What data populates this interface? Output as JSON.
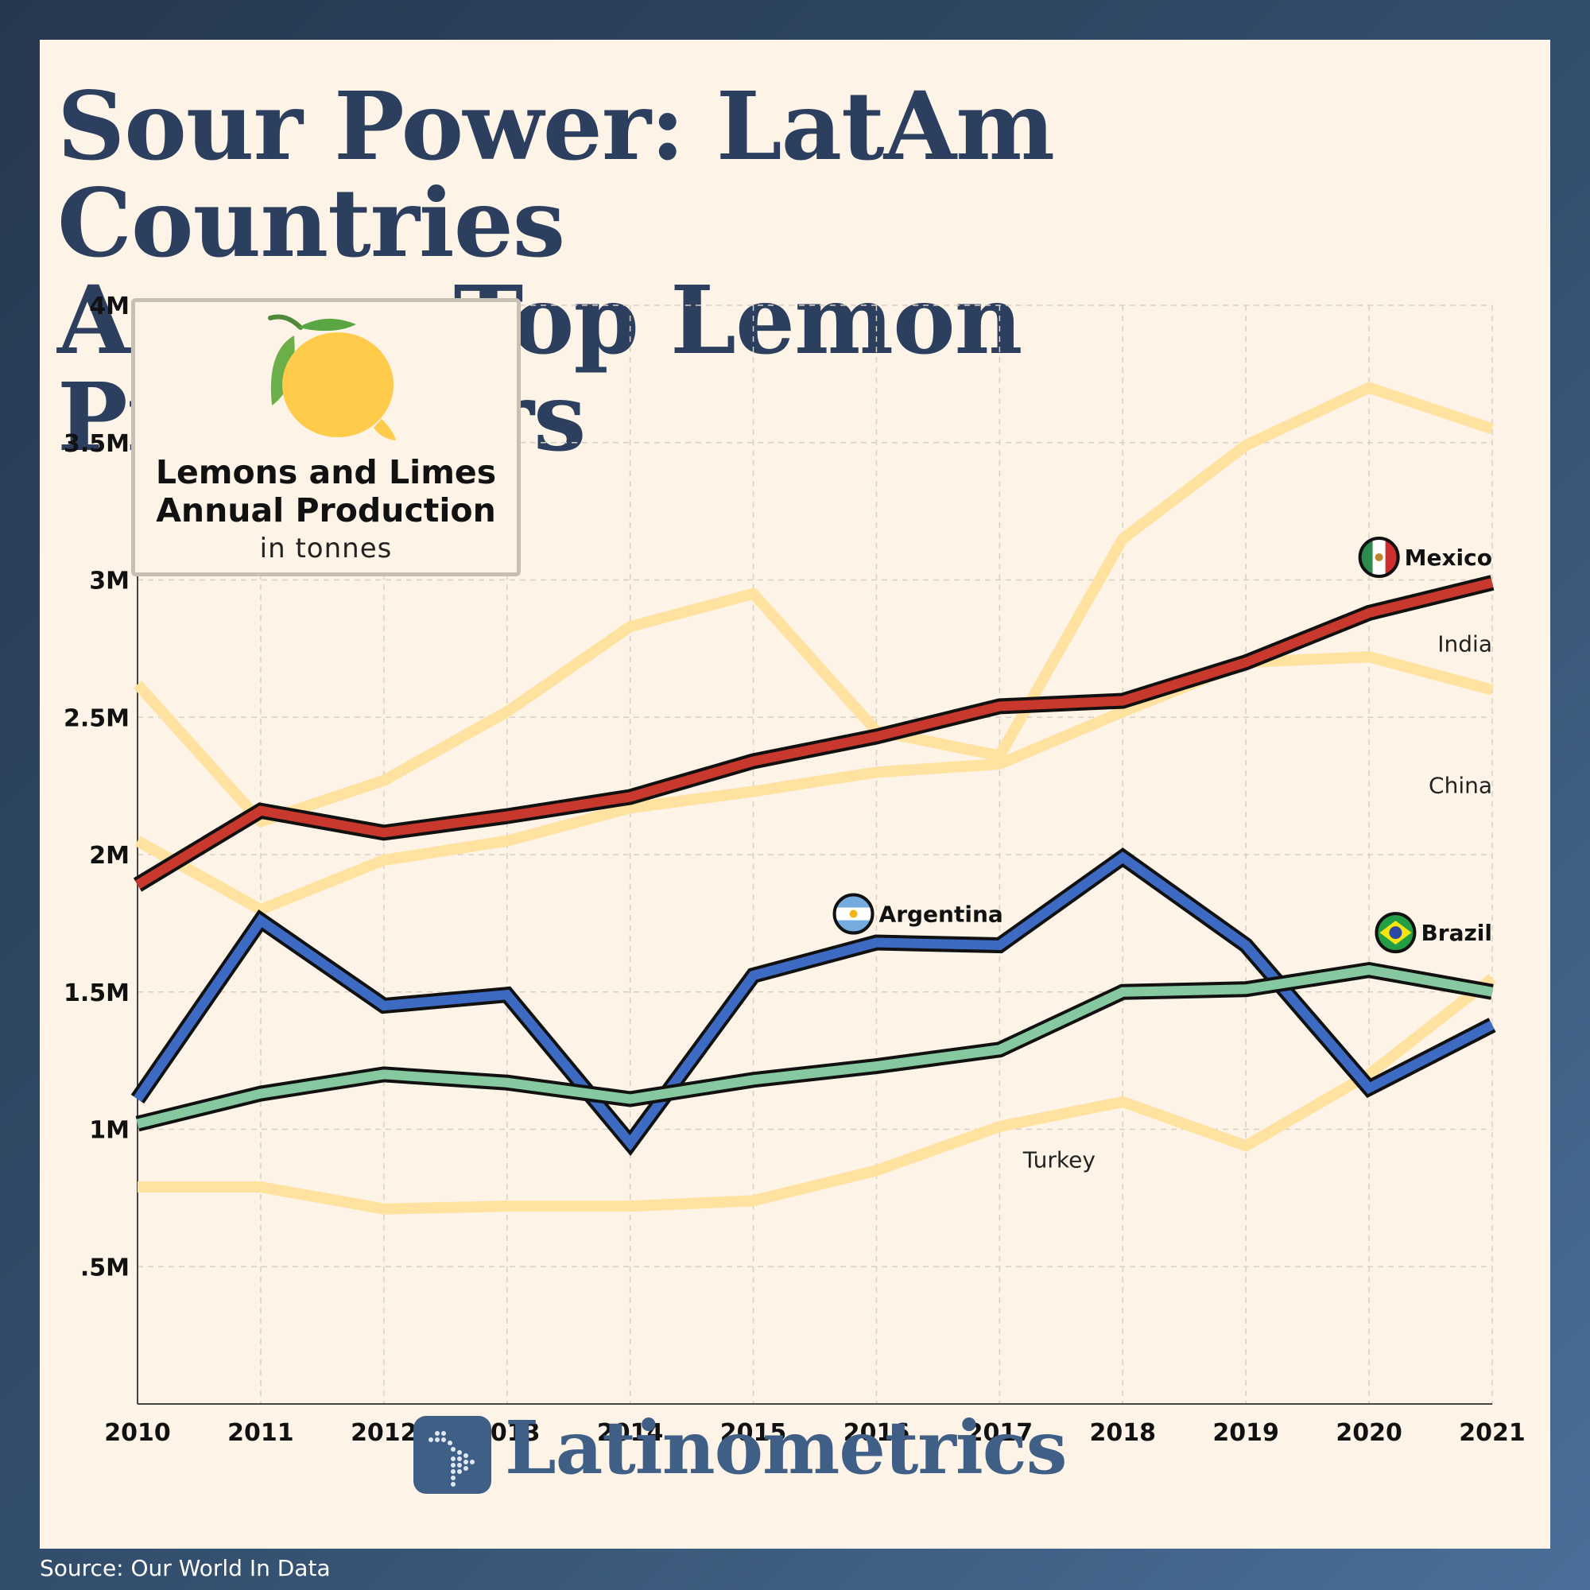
{
  "title": {
    "line1": "Sour Power: LatAm Countries",
    "line2": "Among Top Lemon Producers"
  },
  "legend": {
    "line1": "Lemons and Limes",
    "line2": "Annual Production",
    "unit": "in tonnes",
    "icon": "lemon-icon"
  },
  "brand": {
    "name": "Latinometrics",
    "icon": "latin-america-map-icon"
  },
  "source": "Source: Our World In Data",
  "colors": {
    "mexico": "#c8382c",
    "argentina": "#3d6bc4",
    "brazil": "#86c9a0",
    "others": "#ffe1a0",
    "title": "#2c3f5e",
    "brand": "#3f5f86"
  },
  "chart_data": {
    "type": "line",
    "x": [
      2010,
      2011,
      2012,
      2013,
      2014,
      2015,
      2016,
      2017,
      2018,
      2019,
      2020,
      2021
    ],
    "ylim": [
      0,
      4000000
    ],
    "yticks": [
      {
        "value": 500000,
        "label": ".5M"
      },
      {
        "value": 1000000,
        "label": "1M"
      },
      {
        "value": 1500000,
        "label": "1.5M"
      },
      {
        "value": 2000000,
        "label": "2M"
      },
      {
        "value": 2500000,
        "label": "2.5M"
      },
      {
        "value": 3000000,
        "label": "3M"
      },
      {
        "value": 3500000,
        "label": "3.5M"
      },
      {
        "value": 4000000,
        "label": "4M"
      }
    ],
    "grid": true,
    "series": [
      {
        "name": "India",
        "key": "others",
        "highlight": false,
        "values": [
          2050000,
          1800000,
          1980000,
          2050000,
          2170000,
          2230000,
          2300000,
          2330000,
          2520000,
          2700000,
          2720000,
          2600000
        ]
      },
      {
        "name": "China",
        "key": "others",
        "highlight": false,
        "values": [
          2620000,
          2120000,
          2270000,
          2520000,
          2830000,
          2950000,
          2450000,
          2360000,
          3150000,
          3490000,
          3700000,
          3550000
        ]
      },
      {
        "name": "Turkey",
        "key": "others",
        "highlight": false,
        "values": [
          790000,
          790000,
          710000,
          720000,
          720000,
          740000,
          850000,
          1010000,
          1100000,
          940000,
          1200000,
          1550000
        ]
      },
      {
        "name": "Mexico",
        "key": "mexico",
        "highlight": true,
        "values": [
          1890000,
          2160000,
          2080000,
          2140000,
          2210000,
          2340000,
          2430000,
          2540000,
          2560000,
          2700000,
          2880000,
          2990000
        ]
      },
      {
        "name": "Argentina",
        "key": "argentina",
        "highlight": true,
        "values": [
          1110000,
          1760000,
          1450000,
          1490000,
          950000,
          1560000,
          1680000,
          1670000,
          1990000,
          1670000,
          1150000,
          1380000
        ]
      },
      {
        "name": "Brazil",
        "key": "brazil",
        "highlight": true,
        "values": [
          1020000,
          1130000,
          1200000,
          1170000,
          1110000,
          1180000,
          1230000,
          1290000,
          1500000,
          1510000,
          1580000,
          1500000
        ]
      }
    ]
  }
}
